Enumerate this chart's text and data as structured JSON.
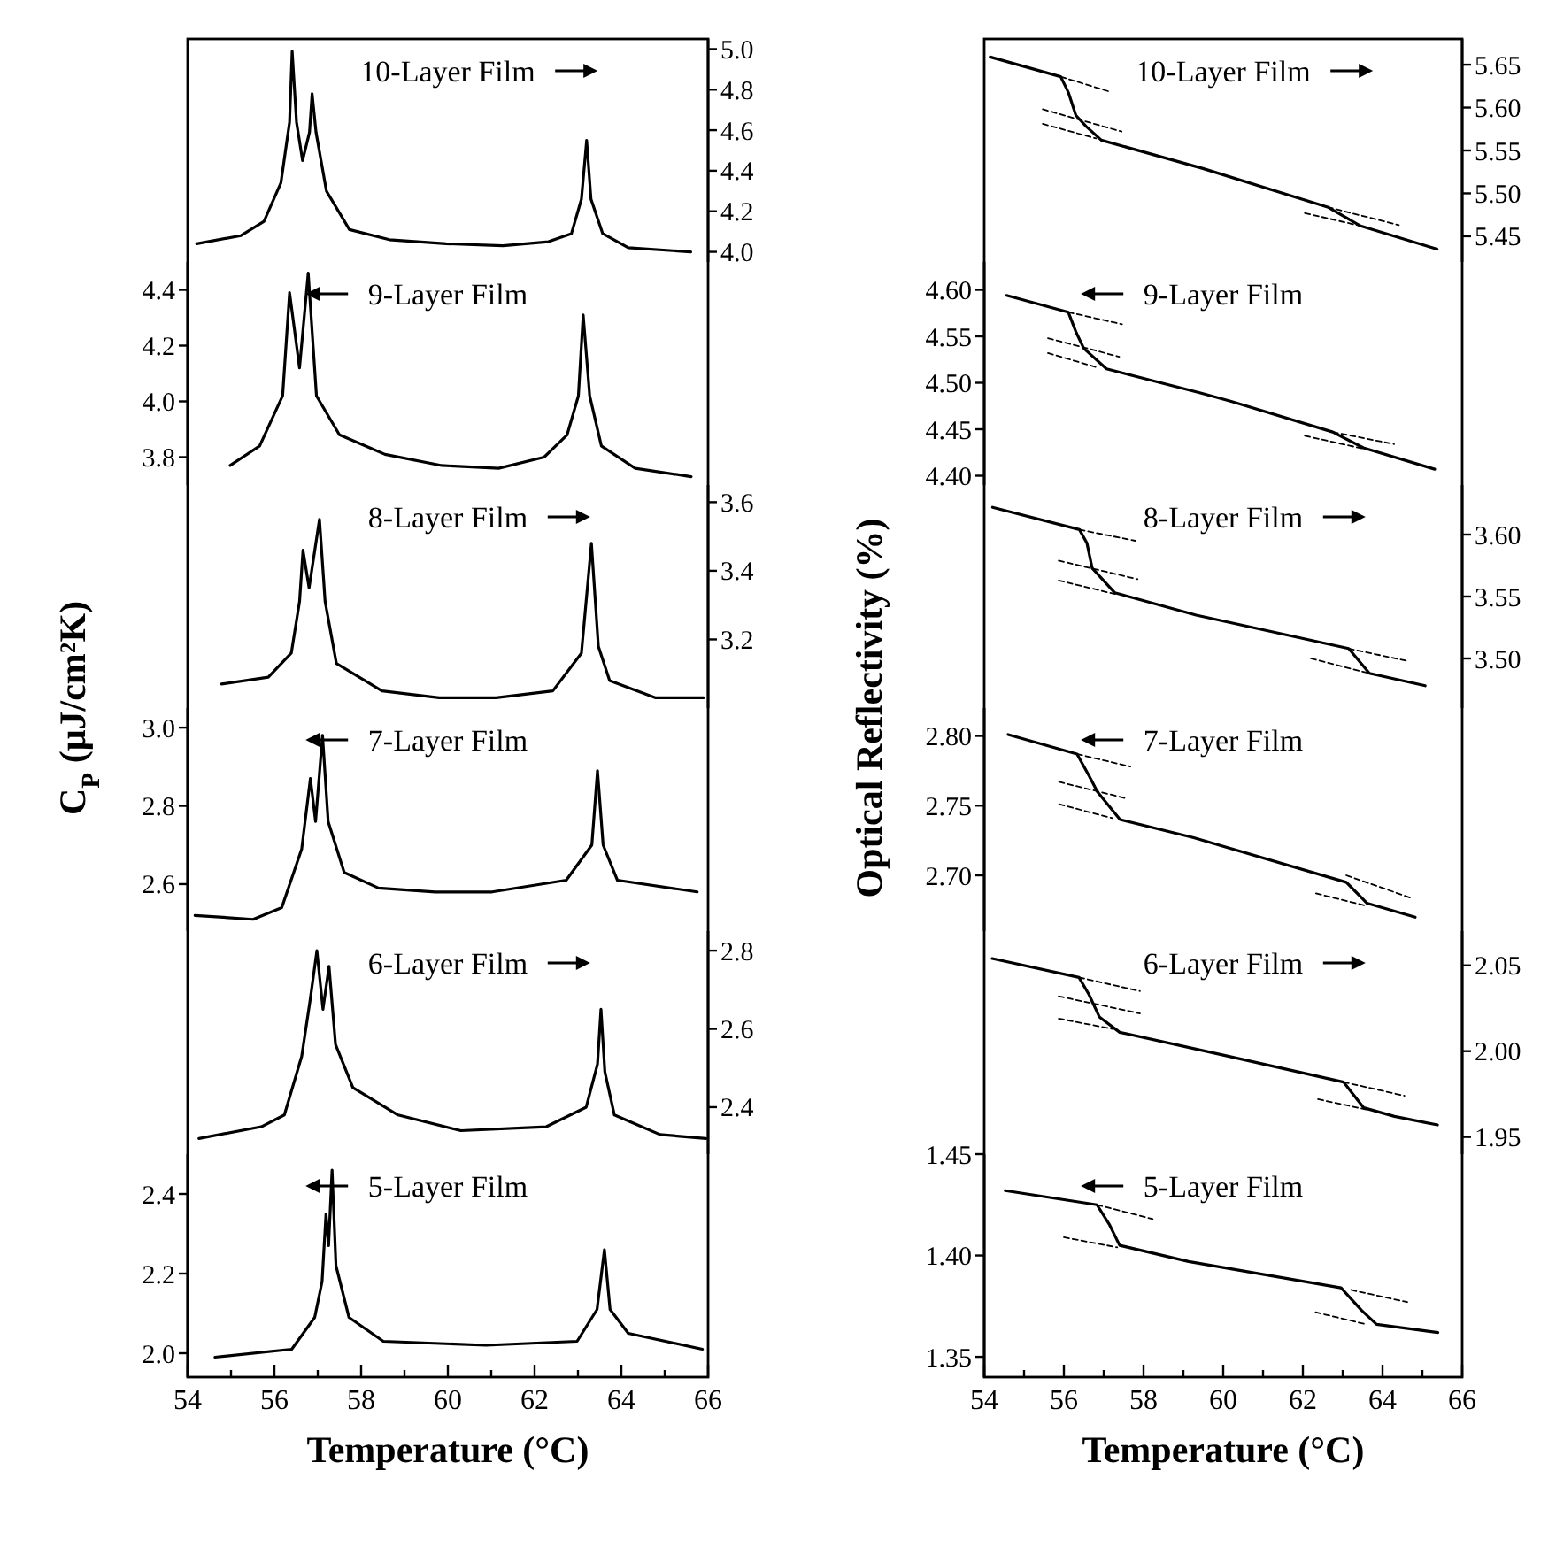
{
  "chart_data": [
    {
      "type": "line",
      "annotations": [
        "10-Layer Film"
      ],
      "xlim": [
        54,
        66
      ],
      "y2lim": [
        3.95,
        5.05
      ],
      "y2ticks": [
        {
          "value": 4,
          "label": "4.0"
        },
        4.2,
        4.4,
        4.6,
        4.8,
        {
          "value": 5,
          "label": "5.0"
        }
      ],
      "tick_labels": "y2",
      "series": [
        {
          "color": "#000000",
          "axis": "y2",
          "x": [
            54.21,
            55.23,
            55.76,
            56.15,
            56.35,
            56.41,
            56.51,
            56.65,
            56.81,
            56.87,
            56.96,
            57.2,
            57.73,
            58.65,
            59.96,
            61.27,
            62.32,
            62.85,
            63.08,
            63.2,
            63.3,
            63.57,
            64.16,
            65.6
          ],
          "values": [
            4.04,
            4.08,
            4.15,
            4.34,
            4.64,
            4.99,
            4.64,
            4.45,
            4.59,
            4.78,
            4.59,
            4.3,
            4.11,
            4.06,
            4.04,
            4.03,
            4.05,
            4.09,
            4.26,
            4.55,
            4.26,
            4.09,
            4.02,
            4.0
          ]
        }
      ]
    },
    {
      "type": "line",
      "annotations": [
        "9-Layer Film"
      ],
      "xlim": [
        54,
        66
      ],
      "ylim": [
        3.7,
        4.5
      ],
      "yticks": [
        3.8,
        {
          "value": 4,
          "label": "4.0"
        },
        4.2,
        4.4
      ],
      "tick_labels": "y",
      "series": [
        {
          "color": "#000000",
          "axis": "y",
          "x": [
            54.98,
            55.66,
            56.19,
            56.35,
            56.58,
            56.78,
            56.97,
            57.5,
            58.55,
            59.86,
            61.17,
            62.22,
            62.75,
            63.01,
            63.12,
            63.27,
            63.54,
            64.32,
            65.61
          ],
          "values": [
            3.77,
            3.84,
            4.02,
            4.39,
            4.12,
            4.46,
            4.02,
            3.88,
            3.81,
            3.77,
            3.76,
            3.8,
            3.88,
            4.02,
            4.31,
            4.02,
            3.84,
            3.76,
            3.73
          ]
        }
      ]
    },
    {
      "type": "line",
      "ylabel": "C$_{P}$ (μJ/cm²K)",
      "annotations": [
        "8-Layer Film"
      ],
      "xlim": [
        54,
        66
      ],
      "y2lim": [
        3.0,
        3.65
      ],
      "y2ticks": [
        3.2,
        3.4,
        3.6
      ],
      "tick_labels": "y2",
      "series": [
        {
          "color": "#000000",
          "axis": "y2",
          "x": [
            54.78,
            55.86,
            56.39,
            56.58,
            56.66,
            56.8,
            57.04,
            57.17,
            57.43,
            58.48,
            59.8,
            61.11,
            62.42,
            63.08,
            63.31,
            63.47,
            63.73,
            64.78,
            65.9
          ],
          "values": [
            3.07,
            3.09,
            3.16,
            3.31,
            3.46,
            3.35,
            3.55,
            3.31,
            3.13,
            3.05,
            3.03,
            3.03,
            3.05,
            3.16,
            3.48,
            3.18,
            3.08,
            3.03,
            3.03
          ]
        }
      ]
    },
    {
      "type": "line",
      "annotations": [
        "7-Layer Film"
      ],
      "xlim": [
        54,
        66
      ],
      "ylim": [
        2.48,
        3.05
      ],
      "yticks": [
        2.6,
        2.8,
        {
          "value": 3,
          "label": "3.0"
        }
      ],
      "tick_labels": "y",
      "series": [
        {
          "color": "#000000",
          "axis": "y",
          "x": [
            54.17,
            55.51,
            56.17,
            56.63,
            56.83,
            56.95,
            57.11,
            57.24,
            57.61,
            58.4,
            59.71,
            61.02,
            62.73,
            63.32,
            63.45,
            63.58,
            63.91,
            65.75
          ],
          "values": [
            2.52,
            2.51,
            2.54,
            2.69,
            2.87,
            2.76,
            2.98,
            2.76,
            2.63,
            2.59,
            2.58,
            2.58,
            2.61,
            2.7,
            2.89,
            2.7,
            2.61,
            2.58
          ]
        }
      ]
    },
    {
      "type": "line",
      "annotations": [
        "6-Layer Film"
      ],
      "xlim": [
        54,
        66
      ],
      "y2lim": [
        2.28,
        2.85
      ],
      "y2ticks": [
        2.4,
        2.6,
        2.8
      ],
      "tick_labels": "y2",
      "series": [
        {
          "color": "#000000",
          "axis": "y2",
          "x": [
            54.26,
            55.7,
            56.23,
            56.63,
            56.82,
            56.98,
            57.12,
            57.26,
            57.41,
            57.81,
            58.85,
            60.3,
            62.27,
            63.19,
            63.45,
            63.53,
            63.62,
            63.84,
            64.89,
            65.95
          ],
          "values": [
            2.32,
            2.35,
            2.38,
            2.53,
            2.67,
            2.8,
            2.65,
            2.76,
            2.56,
            2.45,
            2.38,
            2.34,
            2.35,
            2.4,
            2.51,
            2.65,
            2.49,
            2.38,
            2.33,
            2.32
          ]
        }
      ]
    },
    {
      "type": "line",
      "xlabel": "Temperature (°C)",
      "annotations": [
        "5-Layer Film"
      ],
      "xlim": [
        54,
        66
      ],
      "xticks": [
        54,
        {
          "value": 55,
          "label": null
        },
        56,
        {
          "value": 57,
          "label": null
        },
        58,
        {
          "value": 59,
          "label": null
        },
        60,
        {
          "value": 61,
          "label": null
        },
        62,
        {
          "value": 63,
          "label": null
        },
        64,
        {
          "value": 65,
          "label": null
        },
        66
      ],
      "ylim": [
        1.94,
        2.5
      ],
      "yticks": [
        {
          "value": 2,
          "label": "2.0"
        },
        2.2,
        2.4
      ],
      "series": [
        {
          "color": "#000000",
          "axis": "y",
          "x": [
            54.63,
            56.4,
            56.93,
            57.1,
            57.19,
            57.25,
            57.33,
            57.42,
            57.72,
            58.51,
            60.88,
            62.98,
            63.44,
            63.61,
            63.74,
            64.16,
            65.87
          ],
          "values": [
            1.99,
            2.01,
            2.09,
            2.18,
            2.35,
            2.27,
            2.46,
            2.22,
            2.09,
            2.03,
            2.02,
            2.03,
            2.11,
            2.26,
            2.11,
            2.05,
            2.01
          ]
        }
      ]
    },
    {
      "type": "line",
      "annotations": [
        "10-Layer Film"
      ],
      "xlim": [
        54,
        66
      ],
      "y2lim": [
        5.42,
        5.68
      ],
      "y2ticks": [
        5.45,
        {
          "value": 5.5,
          "label": "5.50"
        },
        5.55,
        {
          "value": 5.6,
          "label": "5.60"
        },
        5.65
      ],
      "tick_labels": "y2",
      "series": [
        {
          "color": "#000000",
          "axis": "y2",
          "x": [
            54.15,
            55.92,
            56.11,
            56.3,
            56.56,
            56.94,
            59.49,
            62.62,
            63.45,
            65.37
          ],
          "values": [
            5.659,
            5.636,
            5.618,
            5.591,
            5.578,
            5.562,
            5.529,
            5.484,
            5.462,
            5.435
          ]
        },
        {
          "type": "line",
          "line_style": "dashed",
          "color": "#000000",
          "axis": "y2",
          "x": [
            55.92,
            57.19
          ],
          "values": [
            5.636,
            5.618
          ]
        },
        {
          "type": "line",
          "line_style": "dashed",
          "color": "#000000",
          "axis": "y2",
          "x": [
            55.47,
            57.45
          ],
          "values": [
            5.598,
            5.572
          ]
        },
        {
          "type": "line",
          "line_style": "dashed",
          "color": "#000000",
          "axis": "y2",
          "x": [
            55.47,
            56.81
          ],
          "values": [
            5.581,
            5.564
          ]
        },
        {
          "type": "line",
          "line_style": "dashed",
          "color": "#000000",
          "axis": "y2",
          "x": [
            62.62,
            64.41
          ],
          "values": [
            5.484,
            5.463
          ]
        },
        {
          "type": "line",
          "line_style": "dashed",
          "color": "#000000",
          "axis": "y2",
          "x": [
            62.05,
            63.45
          ],
          "values": [
            5.477,
            5.462
          ]
        }
      ]
    },
    {
      "type": "line",
      "annotations": [
        "9-Layer Film"
      ],
      "xlim": [
        54,
        66
      ],
      "ylim": [
        4.39,
        4.63
      ],
      "yticks": [
        {
          "value": 4.4,
          "label": "4.40"
        },
        4.45,
        {
          "value": 4.5,
          "label": "4.50"
        },
        4.55,
        {
          "value": 4.6,
          "label": "4.60"
        }
      ],
      "tick_labels": "y",
      "series": [
        {
          "color": "#000000",
          "axis": "y",
          "x": [
            54.56,
            56.11,
            56.31,
            56.5,
            57.07,
            59.43,
            60.2,
            62.75,
            63.52,
            65.31
          ],
          "values": [
            4.594,
            4.576,
            4.554,
            4.537,
            4.515,
            4.489,
            4.48,
            4.447,
            4.43,
            4.407
          ]
        },
        {
          "type": "line",
          "line_style": "dashed",
          "color": "#000000",
          "axis": "y",
          "x": [
            56.11,
            57.46
          ],
          "values": [
            4.576,
            4.563
          ]
        },
        {
          "type": "line",
          "line_style": "dashed",
          "color": "#000000",
          "axis": "y",
          "x": [
            55.6,
            57.39
          ],
          "values": [
            4.548,
            4.528
          ]
        },
        {
          "type": "line",
          "line_style": "dashed",
          "color": "#000000",
          "axis": "y",
          "x": [
            55.6,
            56.88
          ],
          "values": [
            4.532,
            4.516
          ]
        },
        {
          "type": "line",
          "line_style": "dashed",
          "color": "#000000",
          "axis": "y",
          "x": [
            62.75,
            64.29
          ],
          "values": [
            4.447,
            4.434
          ]
        },
        {
          "type": "line",
          "line_style": "dashed",
          "color": "#000000",
          "axis": "y",
          "x": [
            62.05,
            63.52
          ],
          "values": [
            4.443,
            4.429
          ]
        }
      ]
    },
    {
      "type": "line",
      "ylabel": "Optical Reflectivity (%)",
      "annotations": [
        "8-Layer Film"
      ],
      "xlim": [
        54,
        66
      ],
      "y2lim": [
        3.46,
        3.64
      ],
      "y2ticks": [
        {
          "value": 3.5,
          "label": "3.50"
        },
        3.55,
        {
          "value": 3.6,
          "label": "3.60"
        }
      ],
      "tick_labels": "y2",
      "series": [
        {
          "color": "#000000",
          "axis": "y2",
          "x": [
            54.21,
            56.39,
            56.58,
            56.71,
            57.28,
            59.32,
            63.15,
            63.67,
            65.07
          ],
          "values": [
            3.622,
            3.604,
            3.593,
            3.573,
            3.553,
            3.535,
            3.508,
            3.488,
            3.478
          ]
        },
        {
          "type": "line",
          "line_style": "dashed",
          "color": "#000000",
          "axis": "y2",
          "x": [
            56.39,
            57.79
          ],
          "values": [
            3.604,
            3.595
          ]
        },
        {
          "type": "line",
          "line_style": "dashed",
          "color": "#000000",
          "axis": "y2",
          "x": [
            55.87,
            57.85
          ],
          "values": [
            3.579,
            3.564
          ]
        },
        {
          "type": "line",
          "line_style": "dashed",
          "color": "#000000",
          "axis": "y2",
          "x": [
            55.87,
            57.28
          ],
          "values": [
            3.563,
            3.552
          ]
        },
        {
          "type": "line",
          "line_style": "dashed",
          "color": "#000000",
          "axis": "y2",
          "x": [
            63.15,
            64.62
          ],
          "values": [
            3.508,
            3.498
          ]
        },
        {
          "type": "line",
          "line_style": "dashed",
          "color": "#000000",
          "axis": "y2",
          "x": [
            62.2,
            63.67
          ],
          "values": [
            3.5,
            3.488
          ]
        }
      ]
    },
    {
      "type": "line",
      "annotations": [
        "7-Layer Film"
      ],
      "xlim": [
        54,
        66
      ],
      "ylim": [
        2.66,
        2.82
      ],
      "yticks": [
        {
          "value": 2.7,
          "label": "2.70"
        },
        2.75,
        {
          "value": 2.8,
          "label": "2.80"
        }
      ],
      "tick_labels": "y",
      "series": [
        {
          "color": "#000000",
          "axis": "y",
          "x": [
            54.6,
            56.33,
            56.64,
            56.84,
            57.41,
            59.26,
            63.09,
            63.61,
            64.82
          ],
          "values": [
            2.801,
            2.787,
            2.771,
            2.76,
            2.74,
            2.727,
            2.695,
            2.68,
            2.67
          ]
        },
        {
          "type": "line",
          "line_style": "dashed",
          "color": "#000000",
          "axis": "y",
          "x": [
            56.33,
            57.67
          ],
          "values": [
            2.787,
            2.778
          ]
        },
        {
          "type": "line",
          "line_style": "dashed",
          "color": "#000000",
          "axis": "y",
          "x": [
            55.88,
            57.6
          ],
          "values": [
            2.767,
            2.755
          ]
        },
        {
          "type": "line",
          "line_style": "dashed",
          "color": "#000000",
          "axis": "y",
          "x": [
            55.88,
            57.22
          ],
          "values": [
            2.751,
            2.741
          ]
        },
        {
          "type": "line",
          "line_style": "dashed",
          "color": "#000000",
          "axis": "y",
          "x": [
            63.09,
            64.69
          ],
          "values": [
            2.7,
            2.684
          ]
        },
        {
          "type": "line",
          "line_style": "dashed",
          "color": "#000000",
          "axis": "y",
          "x": [
            62.33,
            63.61
          ],
          "values": [
            2.687,
            2.678
          ]
        }
      ]
    },
    {
      "type": "line",
      "annotations": [
        "6-Layer Film"
      ],
      "xlim": [
        54,
        66
      ],
      "y2lim": [
        1.94,
        2.07
      ],
      "y2ticks": [
        1.95,
        {
          "value": 2,
          "label": "2.00"
        },
        2.05
      ],
      "tick_labels": "y2",
      "series": [
        {
          "color": "#000000",
          "axis": "y2",
          "x": [
            54.2,
            56.38,
            56.63,
            56.89,
            57.4,
            59.95,
            63.02,
            63.53,
            64.3,
            65.38
          ],
          "values": [
            2.054,
            2.043,
            2.033,
            2.02,
            2.011,
            1.998,
            1.982,
            1.967,
            1.962,
            1.957
          ]
        },
        {
          "type": "line",
          "line_style": "dashed",
          "color": "#000000",
          "axis": "y2",
          "x": [
            56.38,
            57.91
          ],
          "values": [
            2.043,
            2.035
          ]
        },
        {
          "type": "line",
          "line_style": "dashed",
          "color": "#000000",
          "axis": "y2",
          "x": [
            55.87,
            57.91
          ],
          "values": [
            2.032,
            2.022
          ]
        },
        {
          "type": "line",
          "line_style": "dashed",
          "color": "#000000",
          "axis": "y2",
          "x": [
            55.87,
            57.21
          ],
          "values": [
            2.019,
            2.013
          ]
        },
        {
          "type": "line",
          "line_style": "dashed",
          "color": "#000000",
          "axis": "y2",
          "x": [
            63.02,
            64.55
          ],
          "values": [
            1.982,
            1.974
          ]
        },
        {
          "type": "line",
          "line_style": "dashed",
          "color": "#000000",
          "axis": "y2",
          "x": [
            62.38,
            63.59
          ],
          "values": [
            1.972,
            1.966
          ]
        }
      ]
    },
    {
      "type": "line",
      "xlabel": "Temperature (°C)",
      "annotations": [
        "5-Layer Film"
      ],
      "xlim": [
        54,
        66
      ],
      "xticks": [
        54,
        {
          "value": 55,
          "label": null
        },
        56,
        {
          "value": 57,
          "label": null
        },
        58,
        {
          "value": 59,
          "label": null
        },
        60,
        {
          "value": 61,
          "label": null
        },
        62,
        {
          "value": 63,
          "label": null
        },
        64,
        {
          "value": 65,
          "label": null
        },
        66
      ],
      "ylim": [
        1.34,
        1.45
      ],
      "yticks": [
        1.35,
        {
          "value": 1.4,
          "label": "1.40"
        },
        1.45
      ],
      "series": [
        {
          "color": "#000000",
          "axis": "y",
          "x": [
            54.53,
            56.83,
            57.15,
            57.4,
            59.13,
            62.96,
            63.47,
            63.85,
            65.39
          ],
          "values": [
            1.432,
            1.425,
            1.415,
            1.405,
            1.397,
            1.384,
            1.373,
            1.366,
            1.362
          ]
        },
        {
          "type": "line",
          "line_style": "dashed",
          "color": "#000000",
          "axis": "y",
          "x": [
            56.83,
            58.23
          ],
          "values": [
            1.425,
            1.418
          ]
        },
        {
          "type": "line",
          "line_style": "dashed",
          "color": "#000000",
          "axis": "y",
          "x": [
            56.0,
            57.34
          ],
          "values": [
            1.409,
            1.404
          ]
        },
        {
          "type": "line",
          "line_style": "dashed",
          "color": "#000000",
          "axis": "y",
          "x": [
            63.21,
            64.62
          ],
          "values": [
            1.383,
            1.377
          ]
        },
        {
          "type": "line",
          "line_style": "dashed",
          "color": "#000000",
          "axis": "y",
          "x": [
            62.32,
            63.6
          ],
          "values": [
            1.372,
            1.366
          ]
        }
      ]
    }
  ]
}
